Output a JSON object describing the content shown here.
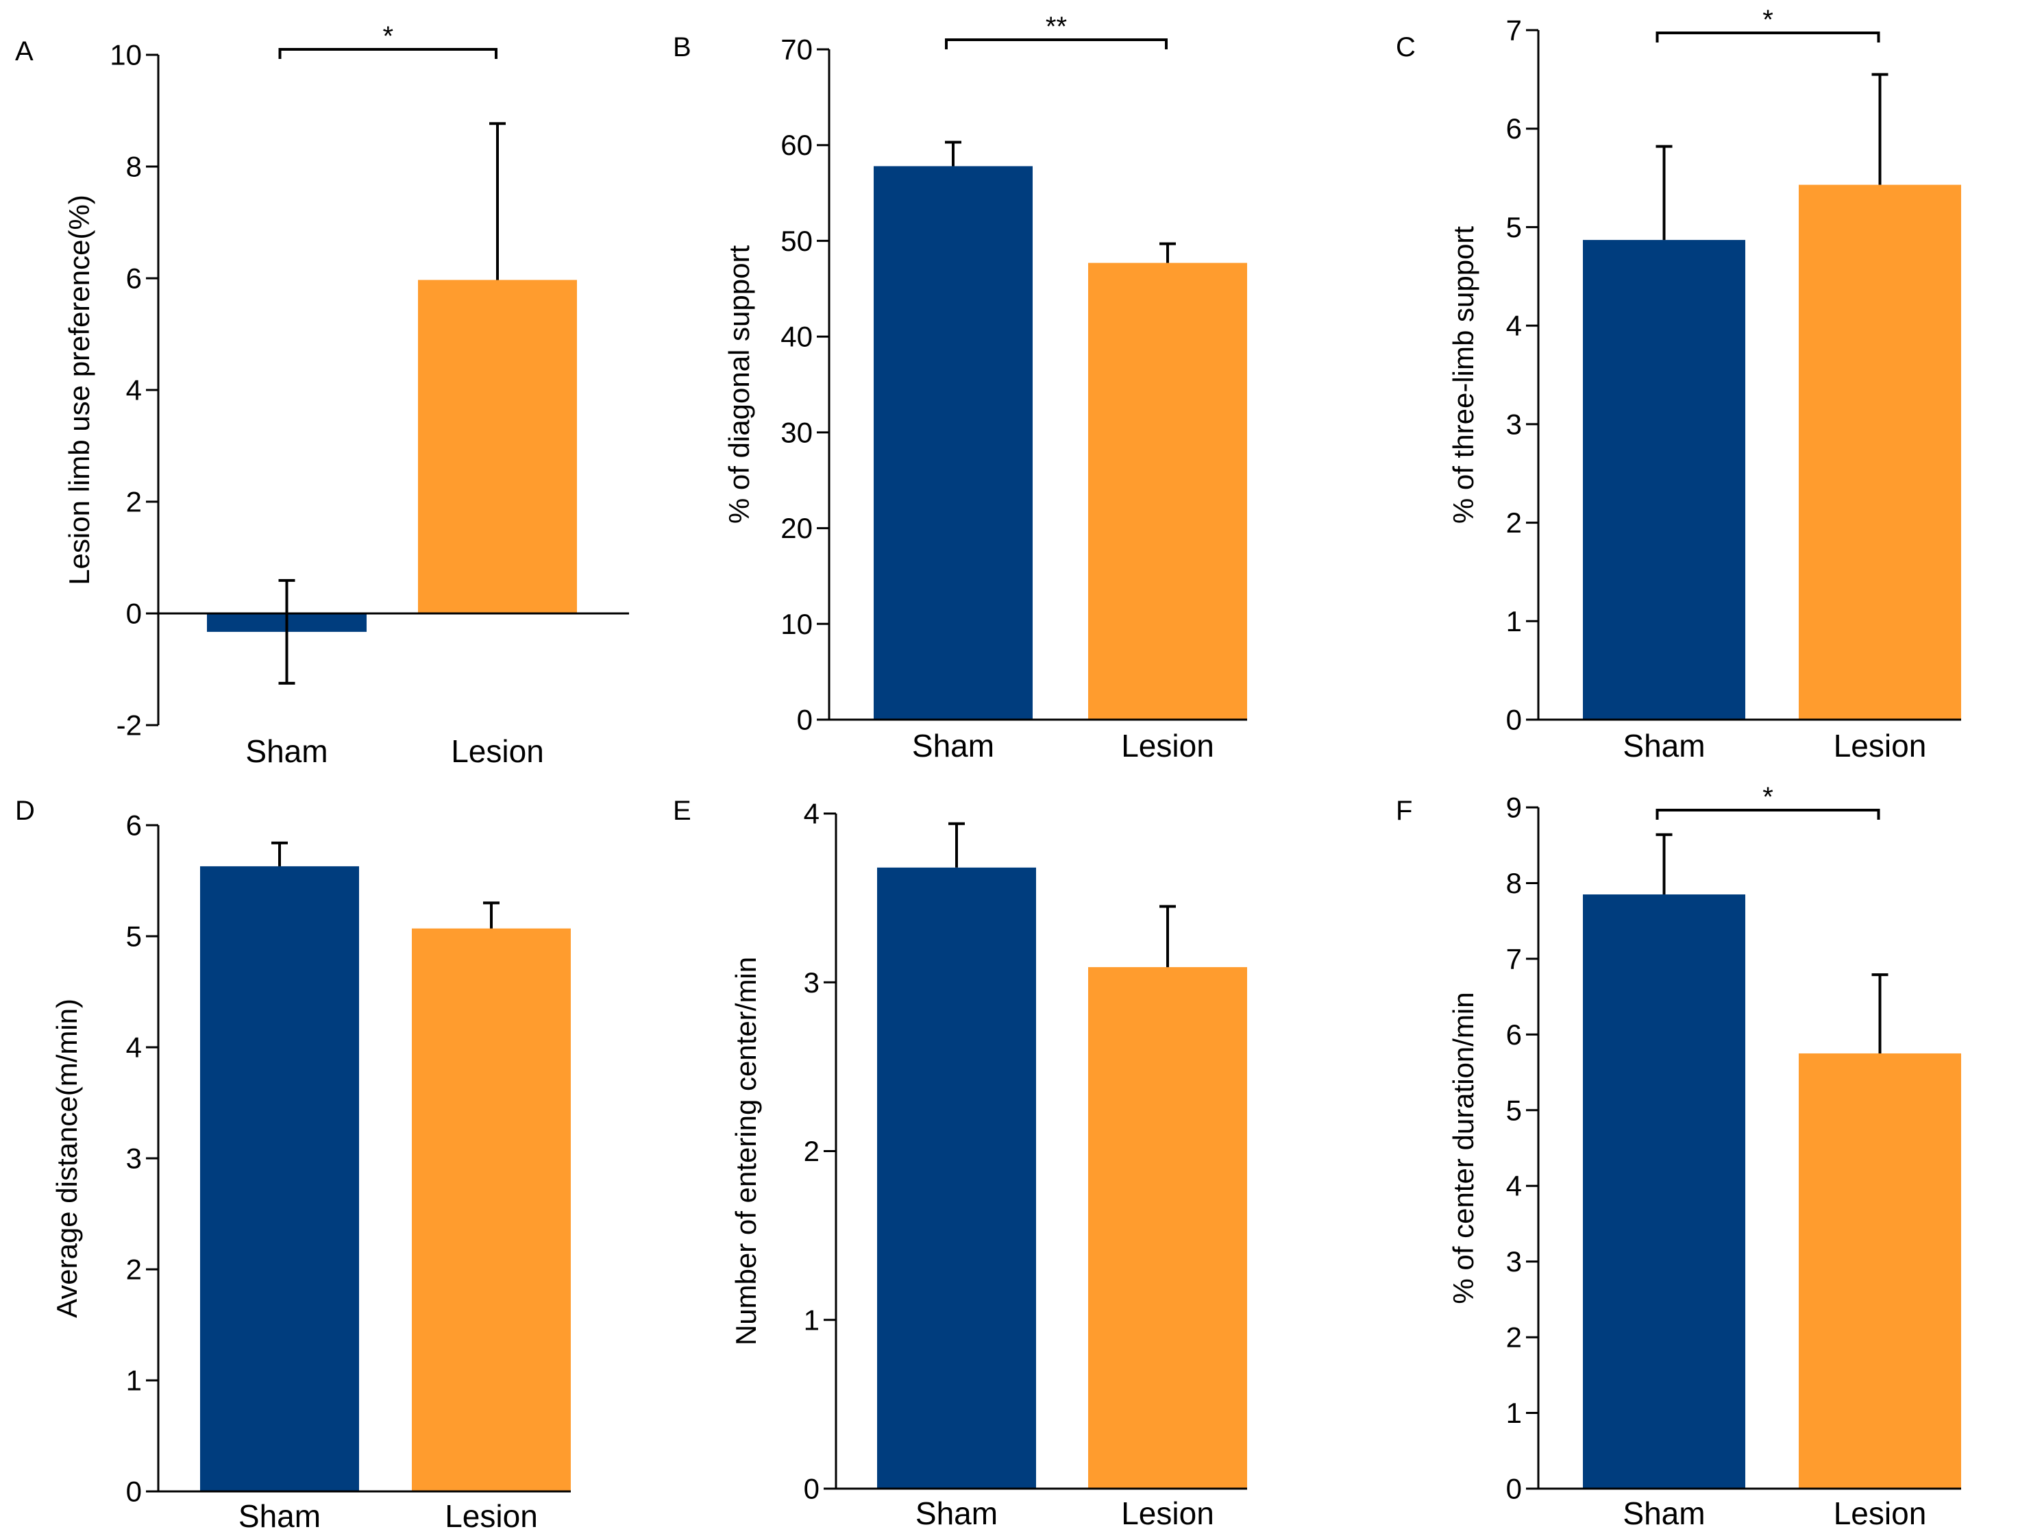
{
  "colors": {
    "sham": "#003d7e",
    "lesion": "#ff9c2e",
    "axis": "#000000"
  },
  "chart_data": [
    {
      "panel": "A",
      "type": "bar",
      "categories": [
        "Sham",
        "Lesion"
      ],
      "values": [
        -0.33,
        5.97
      ],
      "errors": [
        0.92,
        2.8
      ],
      "ylabel": "Lesion limb use preference(%)",
      "ylim": [
        -2,
        10
      ],
      "yticks": [
        -2,
        0,
        2,
        4,
        6,
        8,
        10
      ],
      "significance": "*",
      "zero_baseline": true
    },
    {
      "panel": "B",
      "type": "bar",
      "categories": [
        "Sham",
        "Lesion"
      ],
      "values": [
        57.8,
        47.7
      ],
      "errors": [
        2.5,
        2.0
      ],
      "ylabel": "% of diagonal support",
      "ylim": [
        0,
        70
      ],
      "yticks": [
        0,
        10,
        20,
        30,
        40,
        50,
        60,
        70
      ],
      "significance": "**",
      "zero_baseline": false
    },
    {
      "panel": "C",
      "type": "bar",
      "categories": [
        "Sham",
        "Lesion"
      ],
      "values": [
        4.87,
        5.43
      ],
      "errors": [
        0.95,
        1.12
      ],
      "ylabel": "% of three-limb support",
      "ylim": [
        0,
        7
      ],
      "yticks": [
        0,
        1,
        2,
        3,
        4,
        5,
        6,
        7
      ],
      "significance": "*",
      "zero_baseline": false
    },
    {
      "panel": "D",
      "type": "bar",
      "categories": [
        "Sham",
        "Lesion"
      ],
      "values": [
        5.63,
        5.07
      ],
      "errors": [
        0.21,
        0.23
      ],
      "ylabel": "Average distance(m/min)",
      "ylim": [
        0,
        6
      ],
      "yticks": [
        0,
        1,
        2,
        3,
        4,
        5,
        6
      ],
      "significance": "",
      "zero_baseline": false
    },
    {
      "panel": "E",
      "type": "bar",
      "categories": [
        "Sham",
        "Lesion"
      ],
      "values": [
        3.68,
        3.09
      ],
      "errors": [
        0.26,
        0.36
      ],
      "ylabel": "Number of entering center/min",
      "ylim": [
        0,
        4
      ],
      "yticks": [
        0,
        1,
        2,
        3,
        4
      ],
      "significance": "",
      "zero_baseline": false
    },
    {
      "panel": "F",
      "type": "bar",
      "categories": [
        "Sham",
        "Lesion"
      ],
      "values": [
        7.85,
        5.75
      ],
      "errors": [
        0.79,
        1.04
      ],
      "ylabel": "% of center duration/min",
      "ylim": [
        0,
        9
      ],
      "yticks": [
        0,
        1,
        2,
        3,
        4,
        5,
        6,
        7,
        8,
        9
      ],
      "significance": "*",
      "zero_baseline": false
    }
  ]
}
